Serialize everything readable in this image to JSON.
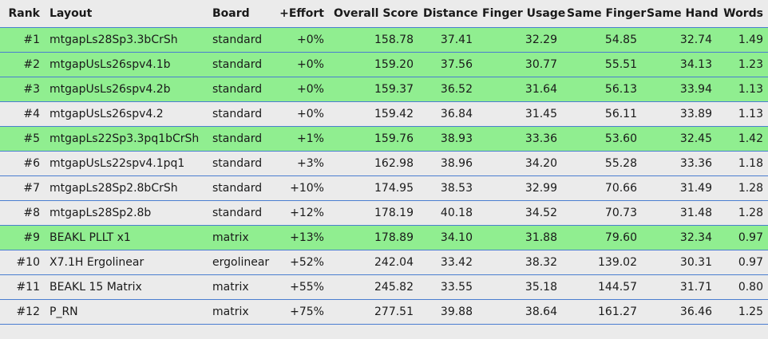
{
  "table": {
    "headers": [
      "Rank",
      "Layout",
      "Board",
      "+Effort",
      "Overall Score",
      "Distance",
      "Finger Usage",
      "Same Finger",
      "Same Hand",
      "Words"
    ],
    "rows": [
      {
        "highlight": true,
        "cells": [
          "#1",
          "mtgapLs28Sp3.3bCrSh",
          "standard",
          "+0%",
          "158.78",
          "37.41",
          "32.29",
          "54.85",
          "32.74",
          "1.49"
        ]
      },
      {
        "highlight": true,
        "cells": [
          "#2",
          "mtgapUsLs26spv4.1b",
          "standard",
          "+0%",
          "159.20",
          "37.56",
          "30.77",
          "55.51",
          "34.13",
          "1.23"
        ]
      },
      {
        "highlight": true,
        "cells": [
          "#3",
          "mtgapUsLs26spv4.2b",
          "standard",
          "+0%",
          "159.37",
          "36.52",
          "31.64",
          "56.13",
          "33.94",
          "1.13"
        ]
      },
      {
        "highlight": false,
        "cells": [
          "#4",
          "mtgapUsLs26spv4.2",
          "standard",
          "+0%",
          "159.42",
          "36.84",
          "31.45",
          "56.11",
          "33.89",
          "1.13"
        ]
      },
      {
        "highlight": true,
        "cells": [
          "#5",
          "mtgapLs22Sp3.3pq1bCrSh",
          "standard",
          "+1%",
          "159.76",
          "38.93",
          "33.36",
          "53.60",
          "32.45",
          "1.42"
        ]
      },
      {
        "highlight": false,
        "cells": [
          "#6",
          "mtgapUsLs22spv4.1pq1",
          "standard",
          "+3%",
          "162.98",
          "38.96",
          "34.20",
          "55.28",
          "33.36",
          "1.18"
        ]
      },
      {
        "highlight": false,
        "cells": [
          "#7",
          "mtgapLs28Sp2.8bCrSh",
          "standard",
          "+10%",
          "174.95",
          "38.53",
          "32.99",
          "70.66",
          "31.49",
          "1.28"
        ]
      },
      {
        "highlight": false,
        "cells": [
          "#8",
          "mtgapLs28Sp2.8b",
          "standard",
          "+12%",
          "178.19",
          "40.18",
          "34.52",
          "70.73",
          "31.48",
          "1.28"
        ]
      },
      {
        "highlight": true,
        "cells": [
          "#9",
          "BEAKL PLLT x1",
          "matrix",
          "+13%",
          "178.89",
          "34.10",
          "31.88",
          "79.60",
          "32.34",
          "0.97"
        ]
      },
      {
        "highlight": false,
        "cells": [
          "#10",
          "X7.1H Ergolinear",
          "ergolinear",
          "+52%",
          "242.04",
          "33.42",
          "38.32",
          "139.02",
          "30.31",
          "0.97"
        ]
      },
      {
        "highlight": false,
        "cells": [
          "#11",
          "BEAKL 15 Matrix",
          "matrix",
          "+55%",
          "245.82",
          "33.55",
          "35.18",
          "144.57",
          "31.71",
          "0.80"
        ]
      },
      {
        "highlight": false,
        "cells": [
          "#12",
          "P_RN",
          "matrix",
          "+75%",
          "277.51",
          "39.88",
          "38.64",
          "161.27",
          "36.46",
          "1.25"
        ]
      }
    ]
  },
  "colors": {
    "highlight_row": "#90ee90",
    "row_border": "#4a7ed0",
    "background": "#ebebeb"
  }
}
